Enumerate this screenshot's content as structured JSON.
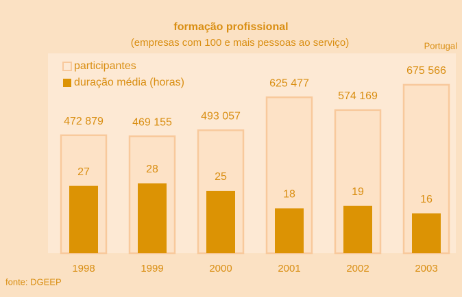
{
  "chart_data": {
    "type": "bar",
    "title": "formação profissional",
    "subtitle": "(empresas com 100 e mais pessoas ao serviço)",
    "annotation": "Portugal",
    "source": "fonte: DGEEP",
    "categories": [
      "1998",
      "1999",
      "2000",
      "2001",
      "2002",
      "2003"
    ],
    "series": [
      {
        "name": "participantes",
        "color": "#f8c99c",
        "style": "outline",
        "values": [
          472879,
          469155,
          493057,
          625477,
          574169,
          675566
        ],
        "value_labels": [
          "472 879",
          "469 155",
          "493 057",
          "625 477",
          "574 169",
          "675 566"
        ]
      },
      {
        "name": "duração média (horas)",
        "color": "#dc9304",
        "style": "filled",
        "axis": "y2",
        "values": [
          27,
          28,
          25,
          18,
          19,
          16
        ]
      }
    ],
    "ylim": [
      0,
      700000
    ],
    "y2lim": [
      0,
      70
    ],
    "legend": "upper left"
  }
}
